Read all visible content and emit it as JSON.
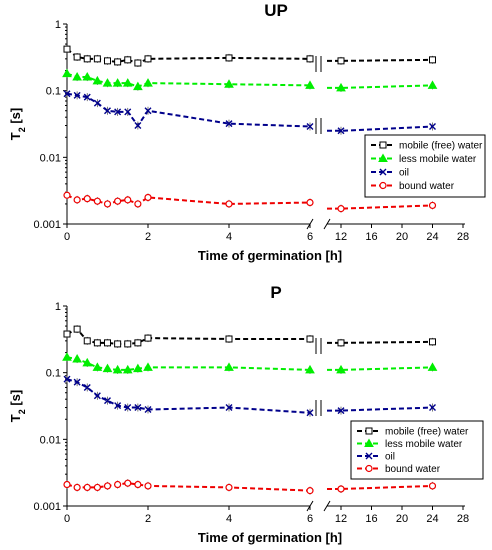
{
  "chart_data": [
    {
      "type": "line",
      "title": "UP",
      "xlabel": "Time of germination [h]",
      "ylabel": "T",
      "ylabel_sub": "2",
      "ylabel_suffix": " [s]",
      "yscale": "log",
      "ylim": [
        0.001,
        1
      ],
      "y_ticks": [
        "0.001",
        "0.01",
        "0.1",
        "1"
      ],
      "x_ticks_left": [
        "0",
        "2",
        "4",
        "6"
      ],
      "x_ticks_right": [
        "12",
        "16",
        "20",
        "24",
        "28"
      ],
      "x_axis_break": true,
      "legend_position": "right",
      "series": [
        {
          "name": "mobile (free) water",
          "color": "#000000",
          "marker": "square",
          "x": [
            0,
            0.25,
            0.5,
            0.75,
            1,
            1.25,
            1.5,
            1.75,
            2,
            4,
            6,
            12,
            24
          ],
          "y": [
            0.42,
            0.32,
            0.3,
            0.3,
            0.28,
            0.27,
            0.29,
            0.26,
            0.3,
            0.31,
            0.3,
            0.28,
            0.29
          ]
        },
        {
          "name": "less mobile water",
          "color": "#00ee00",
          "marker": "triangle",
          "x": [
            0,
            0.25,
            0.5,
            0.75,
            1,
            1.25,
            1.5,
            1.75,
            2,
            4,
            6,
            12,
            24
          ],
          "y": [
            0.18,
            0.16,
            0.16,
            0.14,
            0.13,
            0.13,
            0.13,
            0.115,
            0.13,
            0.125,
            0.12,
            0.11,
            0.12
          ]
        },
        {
          "name": "oil",
          "color": "#00008b",
          "marker": "x",
          "x": [
            0,
            0.25,
            0.5,
            0.75,
            1,
            1.25,
            1.5,
            1.75,
            2,
            4,
            6,
            12,
            24
          ],
          "y": [
            0.09,
            0.085,
            0.08,
            0.065,
            0.05,
            0.048,
            0.048,
            0.03,
            0.05,
            0.032,
            0.029,
            0.025,
            0.029
          ]
        },
        {
          "name": "bound water",
          "color": "#ee0000",
          "marker": "circle",
          "x": [
            0,
            0.25,
            0.5,
            0.75,
            1,
            1.25,
            1.5,
            1.75,
            2,
            4,
            6,
            12,
            24
          ],
          "y": [
            0.0027,
            0.0023,
            0.0024,
            0.0022,
            0.002,
            0.0022,
            0.0023,
            0.002,
            0.0025,
            0.002,
            0.0021,
            0.0017,
            0.0019
          ]
        }
      ]
    },
    {
      "type": "line",
      "title": "P",
      "xlabel": "Time of germination [h]",
      "ylabel": "T",
      "ylabel_sub": "2",
      "ylabel_suffix": " [s]",
      "yscale": "log",
      "ylim": [
        0.001,
        1
      ],
      "y_ticks": [
        "0.001",
        "0.01",
        "0.1",
        "1"
      ],
      "x_ticks_left": [
        "0",
        "2",
        "4",
        "6"
      ],
      "x_ticks_right": [
        "12",
        "16",
        "20",
        "24",
        "28"
      ],
      "x_axis_break": true,
      "legend_position": "bottom-right",
      "series": [
        {
          "name": "mobile (free) water",
          "color": "#000000",
          "marker": "square",
          "x": [
            0,
            0.25,
            0.5,
            0.75,
            1,
            1.25,
            1.5,
            1.75,
            2,
            4,
            6,
            12,
            24
          ],
          "y": [
            0.38,
            0.45,
            0.3,
            0.28,
            0.28,
            0.27,
            0.27,
            0.28,
            0.33,
            0.32,
            0.32,
            0.28,
            0.29
          ]
        },
        {
          "name": "less mobile water",
          "color": "#00ee00",
          "marker": "triangle",
          "x": [
            0,
            0.25,
            0.5,
            0.75,
            1,
            1.25,
            1.5,
            1.75,
            2,
            4,
            6,
            12,
            24
          ],
          "y": [
            0.17,
            0.16,
            0.14,
            0.12,
            0.115,
            0.11,
            0.11,
            0.115,
            0.12,
            0.12,
            0.11,
            0.11,
            0.12
          ]
        },
        {
          "name": "oil",
          "color": "#00008b",
          "marker": "x",
          "x": [
            0,
            0.25,
            0.5,
            0.75,
            1,
            1.25,
            1.5,
            1.75,
            2,
            4,
            6,
            12,
            24
          ],
          "y": [
            0.08,
            0.072,
            0.06,
            0.045,
            0.038,
            0.032,
            0.03,
            0.03,
            0.028,
            0.03,
            0.025,
            0.027,
            0.03
          ]
        },
        {
          "name": "bound water",
          "color": "#ee0000",
          "marker": "circle",
          "x": [
            0,
            0.25,
            0.5,
            0.75,
            1,
            1.25,
            1.5,
            1.75,
            2,
            4,
            6,
            12,
            24
          ],
          "y": [
            0.0021,
            0.0019,
            0.0019,
            0.0019,
            0.002,
            0.0021,
            0.0022,
            0.0021,
            0.002,
            0.0019,
            0.0017,
            0.0018,
            0.002
          ]
        }
      ]
    }
  ]
}
